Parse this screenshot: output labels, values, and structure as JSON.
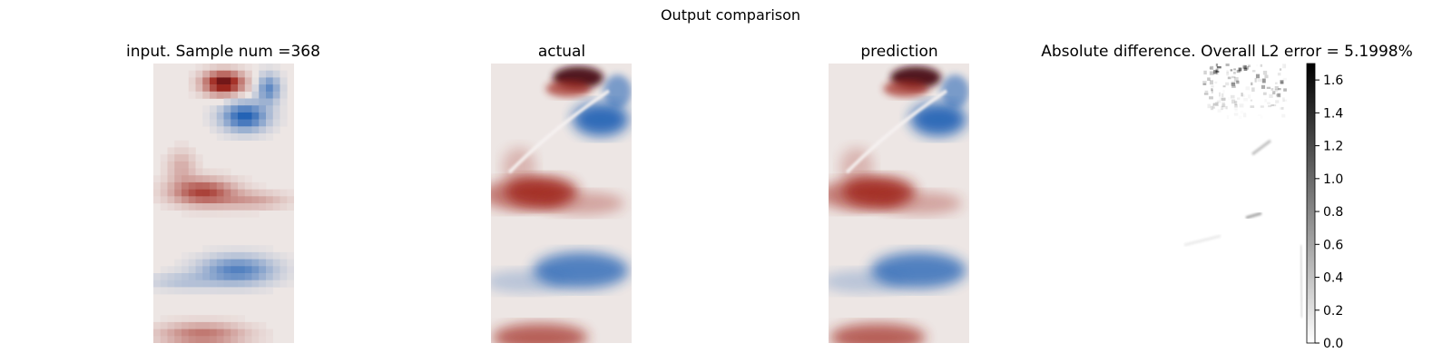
{
  "figure": {
    "suptitle": "Output comparison"
  },
  "chart_data": [
    {
      "type": "heatmap",
      "title": "input. Sample num =368",
      "colormap": "diverging blue-white-red",
      "grid": false,
      "axes": "off",
      "resolution": "coarse (pixelated, ~20x40)"
    },
    {
      "type": "heatmap",
      "title": "actual",
      "colormap": "diverging blue-white-red",
      "grid": false,
      "axes": "off"
    },
    {
      "type": "heatmap",
      "title": "prediction",
      "colormap": "diverging blue-white-red",
      "grid": false,
      "axes": "off"
    },
    {
      "type": "heatmap",
      "title": "Absolute difference. Overall L2 error = 5.1998%",
      "colormap": "grayscale (white to black)",
      "grid": false,
      "axes": "off",
      "colorbar": {
        "range": [
          0.0,
          1.7
        ],
        "ticks": [
          "0.0",
          "0.2",
          "0.4",
          "0.6",
          "0.8",
          "1.0",
          "1.2",
          "1.4",
          "1.6"
        ],
        "placement": "right"
      }
    }
  ],
  "colors": {
    "negative": "#1f5fb4",
    "positive": "#a0281e",
    "extreme_positive": "#4a0812",
    "neutral": "#ede6e4",
    "error_ink": "#000000"
  }
}
